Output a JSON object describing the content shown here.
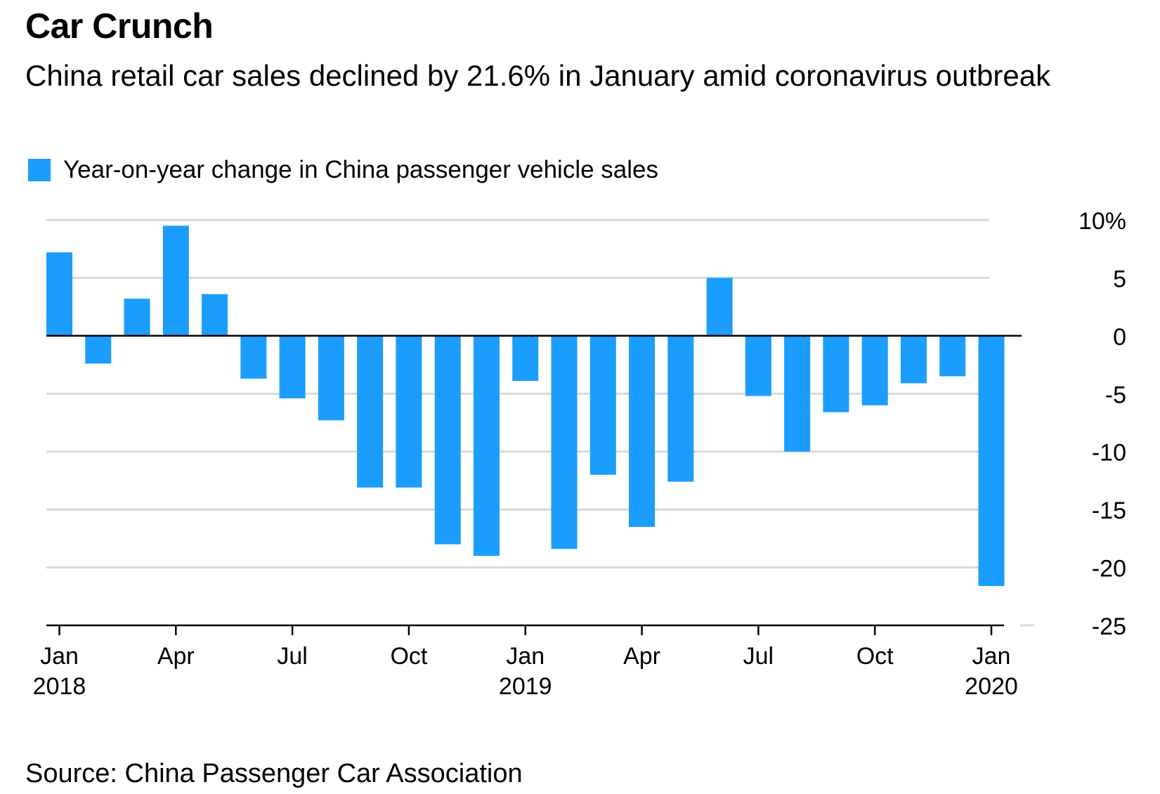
{
  "header": {
    "title": "Car Crunch",
    "subtitle": "China retail car sales declined by 21.6% in January amid coronavirus outbreak"
  },
  "footer": {
    "source": "Source: China Passenger Car Association"
  },
  "colors": {
    "bar": "#1a9dfc",
    "grid": "#d9d9d9",
    "axis": "#000000"
  },
  "chart_data": {
    "type": "bar",
    "title": "Car Crunch",
    "subtitle": "China retail car sales declined by 21.6% in January amid coronavirus outbreak",
    "xlabel": "",
    "ylabel": "",
    "ylim": [
      -25,
      10
    ],
    "yticks": [
      10,
      5,
      0,
      -5,
      -10,
      -15,
      -20,
      -25
    ],
    "ytick_labels": [
      "10%",
      "5",
      "0",
      "-5",
      "-10",
      "-15",
      "-20",
      "-25"
    ],
    "y_axis_position": "right",
    "grid": true,
    "legend_position": "top-left",
    "categories": [
      "2018-01",
      "2018-02",
      "2018-03",
      "2018-04",
      "2018-05",
      "2018-06",
      "2018-07",
      "2018-08",
      "2018-09",
      "2018-10",
      "2018-11",
      "2018-12",
      "2019-01",
      "2019-02",
      "2019-03",
      "2019-04",
      "2019-05",
      "2019-06",
      "2019-07",
      "2019-08",
      "2019-09",
      "2019-10",
      "2019-11",
      "2019-12",
      "2020-01"
    ],
    "x_tick_labels": [
      {
        "category": "2018-01",
        "month": "Jan",
        "year": "2018"
      },
      {
        "category": "2018-04",
        "month": "Apr",
        "year": ""
      },
      {
        "category": "2018-07",
        "month": "Jul",
        "year": ""
      },
      {
        "category": "2018-10",
        "month": "Oct",
        "year": ""
      },
      {
        "category": "2019-01",
        "month": "Jan",
        "year": "2019"
      },
      {
        "category": "2019-04",
        "month": "Apr",
        "year": ""
      },
      {
        "category": "2019-07",
        "month": "Jul",
        "year": ""
      },
      {
        "category": "2019-10",
        "month": "Oct",
        "year": ""
      },
      {
        "category": "2020-01",
        "month": "Jan",
        "year": "2020"
      }
    ],
    "series": [
      {
        "name": "Year-on-year change in China passenger vehicle sales",
        "color": "#1a9dfc",
        "values": [
          7.2,
          -2.4,
          3.2,
          9.5,
          3.6,
          -3.7,
          -5.4,
          -7.3,
          -13.1,
          -13.1,
          -18.0,
          -19.0,
          -3.9,
          -18.4,
          -12.0,
          -16.5,
          -12.6,
          5.0,
          -5.2,
          -10.0,
          -6.6,
          -6.0,
          -4.1,
          -3.5,
          -21.6
        ]
      }
    ]
  }
}
